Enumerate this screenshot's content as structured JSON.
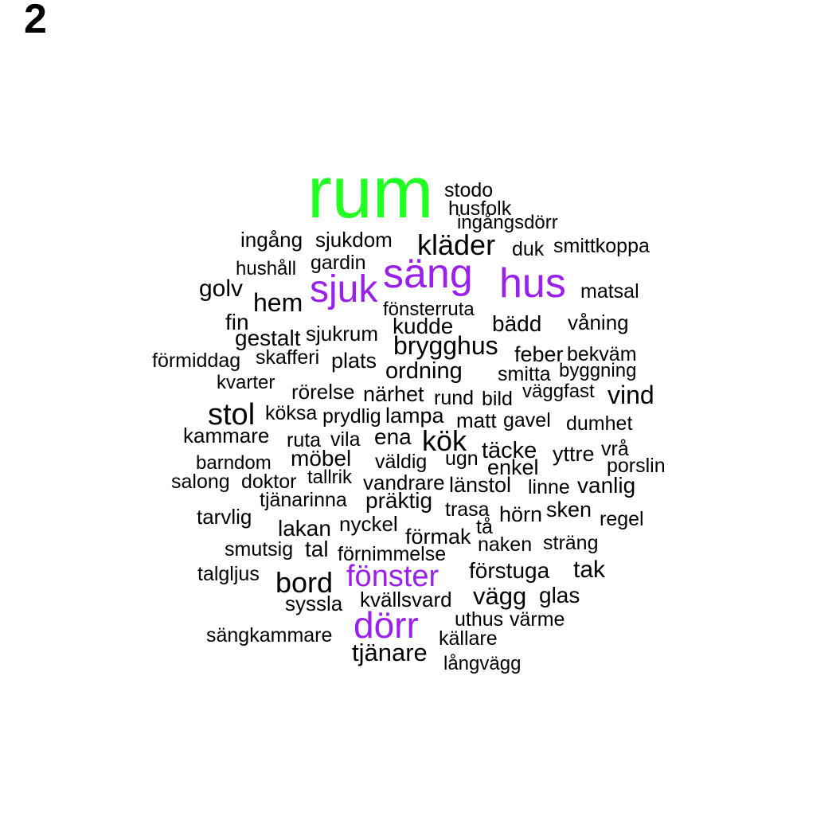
{
  "panel_label": "2",
  "colors": {
    "green": "#22ff22",
    "purple": "#9a20ec",
    "black": "#000000"
  },
  "words": [
    {
      "text": "rum",
      "color": "green"
    },
    {
      "text": "stodo",
      "color": "black"
    },
    {
      "text": "husfolk",
      "color": "black"
    },
    {
      "text": "ingångsdörr",
      "color": "black"
    },
    {
      "text": "ingång",
      "color": "black"
    },
    {
      "text": "sjukdom",
      "color": "black"
    },
    {
      "text": "kläder",
      "color": "black"
    },
    {
      "text": "duk",
      "color": "black"
    },
    {
      "text": "smittkoppa",
      "color": "black"
    },
    {
      "text": "hushåll",
      "color": "black"
    },
    {
      "text": "gardin",
      "color": "black"
    },
    {
      "text": "säng",
      "color": "purple"
    },
    {
      "text": "hus",
      "color": "purple"
    },
    {
      "text": "golv",
      "color": "black"
    },
    {
      "text": "sjuk",
      "color": "purple"
    },
    {
      "text": "matsal",
      "color": "black"
    },
    {
      "text": "hem",
      "color": "black"
    },
    {
      "text": "fönsterruta",
      "color": "black"
    },
    {
      "text": "fin",
      "color": "black"
    },
    {
      "text": "kudde",
      "color": "black"
    },
    {
      "text": "bädd",
      "color": "black"
    },
    {
      "text": "våning",
      "color": "black"
    },
    {
      "text": "gestalt",
      "color": "black"
    },
    {
      "text": "sjukrum",
      "color": "black"
    },
    {
      "text": "brygghus",
      "color": "black"
    },
    {
      "text": "feber",
      "color": "black"
    },
    {
      "text": "bekväm",
      "color": "black"
    },
    {
      "text": "förmiddag",
      "color": "black"
    },
    {
      "text": "skafferi",
      "color": "black"
    },
    {
      "text": "plats",
      "color": "black"
    },
    {
      "text": "ordning",
      "color": "black"
    },
    {
      "text": "smitta",
      "color": "black"
    },
    {
      "text": "byggning",
      "color": "black"
    },
    {
      "text": "kvarter",
      "color": "black"
    },
    {
      "text": "rörelse",
      "color": "black"
    },
    {
      "text": "närhet",
      "color": "black"
    },
    {
      "text": "rund",
      "color": "black"
    },
    {
      "text": "bild",
      "color": "black"
    },
    {
      "text": "väggfast",
      "color": "black"
    },
    {
      "text": "vind",
      "color": "black"
    },
    {
      "text": "stol",
      "color": "black"
    },
    {
      "text": "köksa",
      "color": "black"
    },
    {
      "text": "prydlig",
      "color": "black"
    },
    {
      "text": "lampa",
      "color": "black"
    },
    {
      "text": "matt",
      "color": "black"
    },
    {
      "text": "gavel",
      "color": "black"
    },
    {
      "text": "dumhet",
      "color": "black"
    },
    {
      "text": "kammare",
      "color": "black"
    },
    {
      "text": "ruta",
      "color": "black"
    },
    {
      "text": "vila",
      "color": "black"
    },
    {
      "text": "ena",
      "color": "black"
    },
    {
      "text": "kök",
      "color": "black"
    },
    {
      "text": "täcke",
      "color": "black"
    },
    {
      "text": "yttre",
      "color": "black"
    },
    {
      "text": "vrå",
      "color": "black"
    },
    {
      "text": "barndom",
      "color": "black"
    },
    {
      "text": "möbel",
      "color": "black"
    },
    {
      "text": "väldig",
      "color": "black"
    },
    {
      "text": "ugn",
      "color": "black"
    },
    {
      "text": "enkel",
      "color": "black"
    },
    {
      "text": "porslin",
      "color": "black"
    },
    {
      "text": "salong",
      "color": "black"
    },
    {
      "text": "doktor",
      "color": "black"
    },
    {
      "text": "tallrik",
      "color": "black"
    },
    {
      "text": "vandrare",
      "color": "black"
    },
    {
      "text": "länstol",
      "color": "black"
    },
    {
      "text": "linne",
      "color": "black"
    },
    {
      "text": "vanlig",
      "color": "black"
    },
    {
      "text": "tjänarinna",
      "color": "black"
    },
    {
      "text": "präktig",
      "color": "black"
    },
    {
      "text": "trasa",
      "color": "black"
    },
    {
      "text": "hörn",
      "color": "black"
    },
    {
      "text": "sken",
      "color": "black"
    },
    {
      "text": "tarvlig",
      "color": "black"
    },
    {
      "text": "regel",
      "color": "black"
    },
    {
      "text": "lakan",
      "color": "black"
    },
    {
      "text": "nyckel",
      "color": "black"
    },
    {
      "text": "tå",
      "color": "black"
    },
    {
      "text": "förmak",
      "color": "black"
    },
    {
      "text": "smutsig",
      "color": "black"
    },
    {
      "text": "tal",
      "color": "black"
    },
    {
      "text": "förnimmelse",
      "color": "black"
    },
    {
      "text": "naken",
      "color": "black"
    },
    {
      "text": "sträng",
      "color": "black"
    },
    {
      "text": "talgljus",
      "color": "black"
    },
    {
      "text": "fönster",
      "color": "purple"
    },
    {
      "text": "förstuga",
      "color": "black"
    },
    {
      "text": "tak",
      "color": "black"
    },
    {
      "text": "bord",
      "color": "black"
    },
    {
      "text": "vägg",
      "color": "black"
    },
    {
      "text": "glas",
      "color": "black"
    },
    {
      "text": "syssla",
      "color": "black"
    },
    {
      "text": "kvällsvard",
      "color": "black"
    },
    {
      "text": "dörr",
      "color": "purple"
    },
    {
      "text": "uthus",
      "color": "black"
    },
    {
      "text": "värme",
      "color": "black"
    },
    {
      "text": "sängkammare",
      "color": "black"
    },
    {
      "text": "källare",
      "color": "black"
    },
    {
      "text": "tjänare",
      "color": "black"
    },
    {
      "text": "långvägg",
      "color": "black"
    }
  ]
}
